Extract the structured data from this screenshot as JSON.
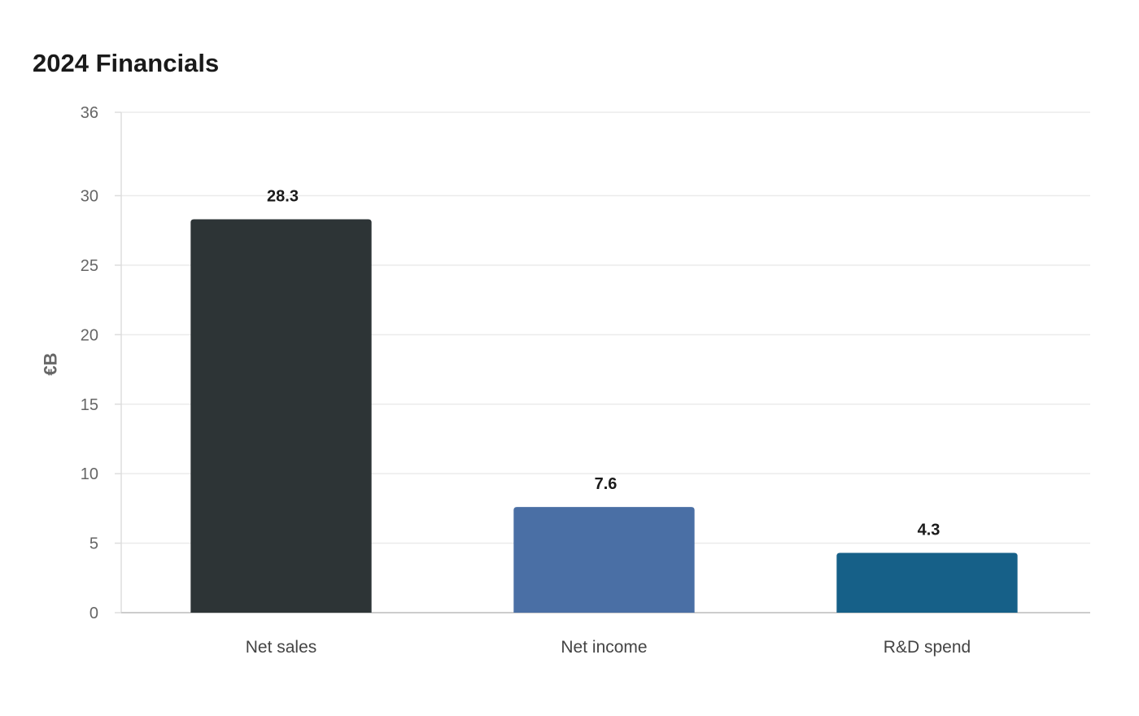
{
  "chart_data": {
    "type": "bar",
    "title": "2024 Financials",
    "xlabel": "",
    "ylabel": "€B",
    "ylim": [
      0,
      36
    ],
    "yticks": [
      0,
      5,
      10,
      15,
      20,
      25,
      30,
      36
    ],
    "grid": true,
    "categories": [
      "Net sales",
      "Net income",
      "R&D spend"
    ],
    "values": [
      28.3,
      7.6,
      4.3
    ],
    "value_labels": [
      "28.3",
      "7.6",
      "4.3"
    ],
    "colors": [
      "#2d3436",
      "#4a6fa5",
      "#166088"
    ]
  }
}
